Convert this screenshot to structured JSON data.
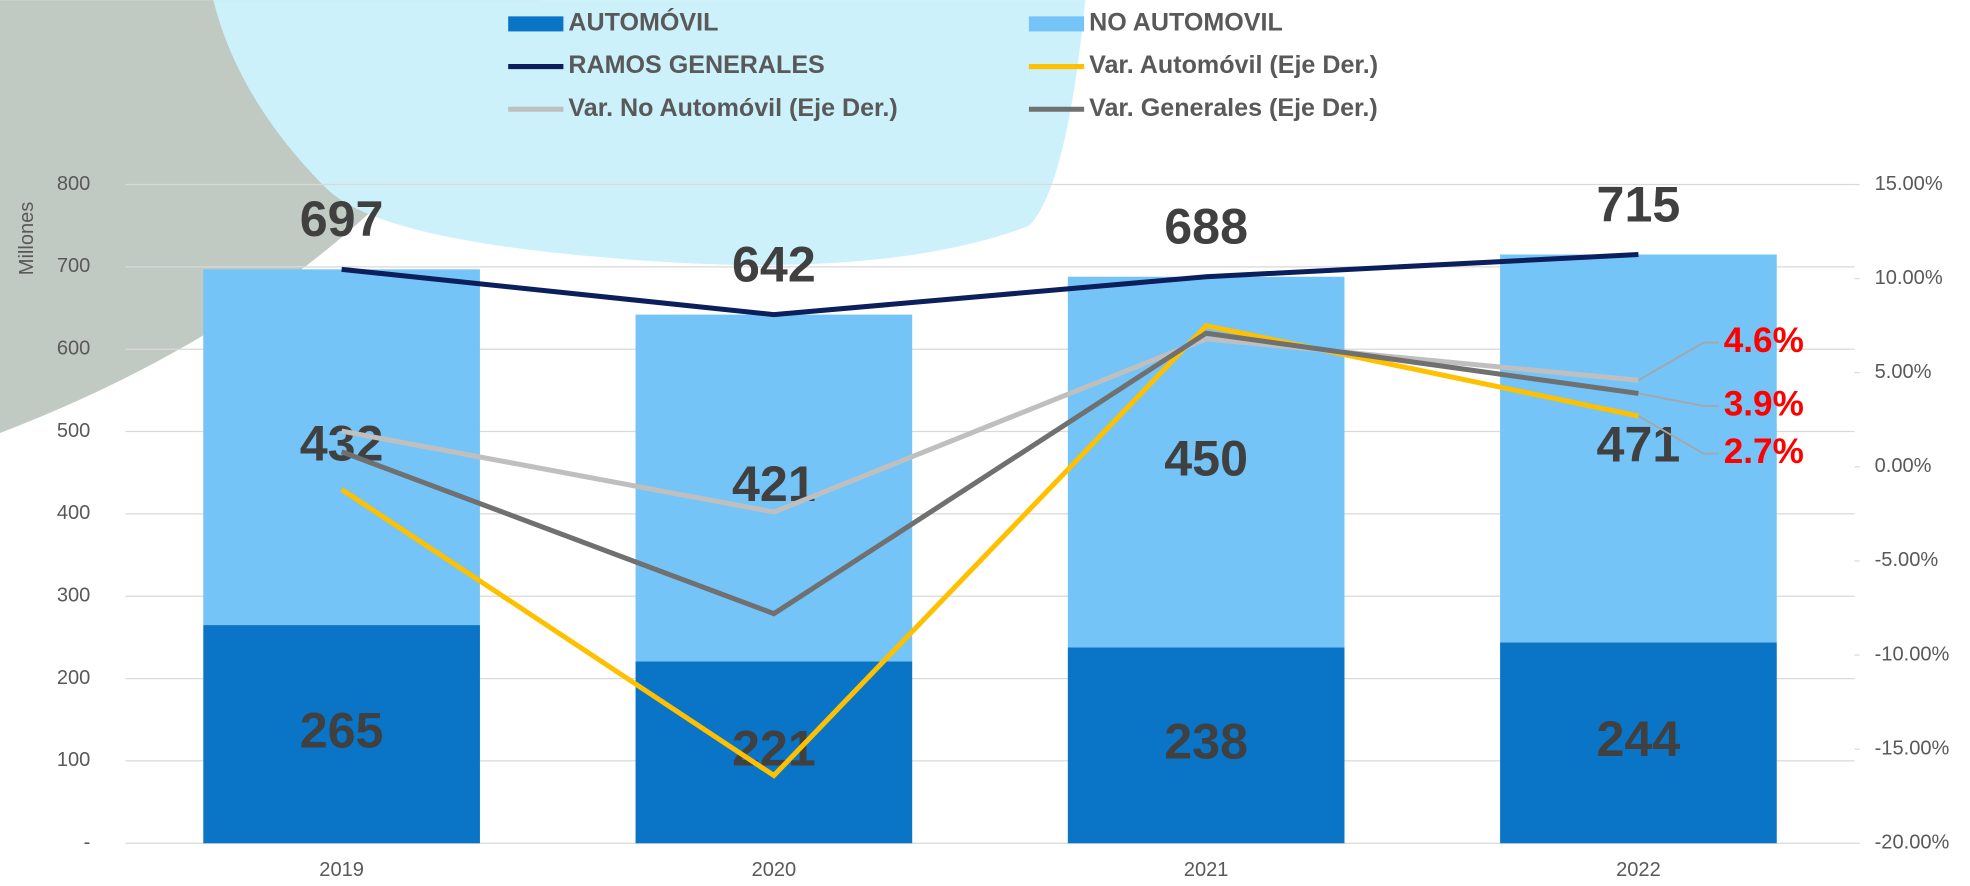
{
  "chart_data": {
    "type": "bar",
    "stacked": true,
    "y_label": "Millones",
    "categories": [
      "2019",
      "2020",
      "2021",
      "2022"
    ],
    "ylim": [
      0,
      800
    ],
    "yticks": [
      {
        "value": 0,
        "label": "-"
      },
      100,
      200,
      300,
      400,
      500,
      600,
      700,
      800
    ],
    "y2lim": [
      -20,
      15
    ],
    "y2ticks": [
      {
        "value": -20,
        "label": "-20.00%"
      },
      {
        "value": -15,
        "label": "-15.00%"
      },
      {
        "value": -10,
        "label": "-10.00%"
      },
      {
        "value": -5,
        "label": "-5.00%"
      },
      {
        "value": 0,
        "label": "0.00%"
      },
      {
        "value": 5,
        "label": "5.00%"
      },
      {
        "value": 10,
        "label": "10.00%"
      },
      {
        "value": 15,
        "label": "15.00%"
      }
    ],
    "grid": true,
    "legend": "top",
    "series": [
      {
        "name": "AUTOMÓVIL",
        "type": "bar",
        "color": "#0a74c6",
        "values": [
          265,
          221,
          238,
          244
        ]
      },
      {
        "name": "NO AUTOMOVIL",
        "type": "bar",
        "color": "#74c4f8",
        "values": [
          432,
          421,
          450,
          471
        ]
      },
      {
        "name": "RAMOS GENERALES",
        "type": "line",
        "color": "#0b1f5c",
        "values": [
          697,
          642,
          688,
          715
        ]
      },
      {
        "name": "Var. Automóvil (Eje Der.)",
        "type": "line",
        "axis": "y2",
        "color": "#ffc000",
        "values": [
          -1.2,
          -16.4,
          7.5,
          2.7
        ],
        "value_labels": [
          null,
          null,
          null,
          "2.7%"
        ]
      },
      {
        "name": "Var. No Automóvil (Eje Der.)",
        "type": "line",
        "axis": "y2",
        "color": "#bfbfbf",
        "values": [
          1.9,
          -2.4,
          6.8,
          4.6
        ],
        "value_labels": [
          null,
          null,
          null,
          "4.6%"
        ]
      },
      {
        "name": "Var. Generales (Eje Der.)",
        "type": "line",
        "axis": "y2",
        "color": "#707070",
        "values": [
          0.8,
          -7.8,
          7.1,
          3.9
        ],
        "value_labels": [
          null,
          null,
          null,
          "3.9%"
        ]
      }
    ]
  }
}
